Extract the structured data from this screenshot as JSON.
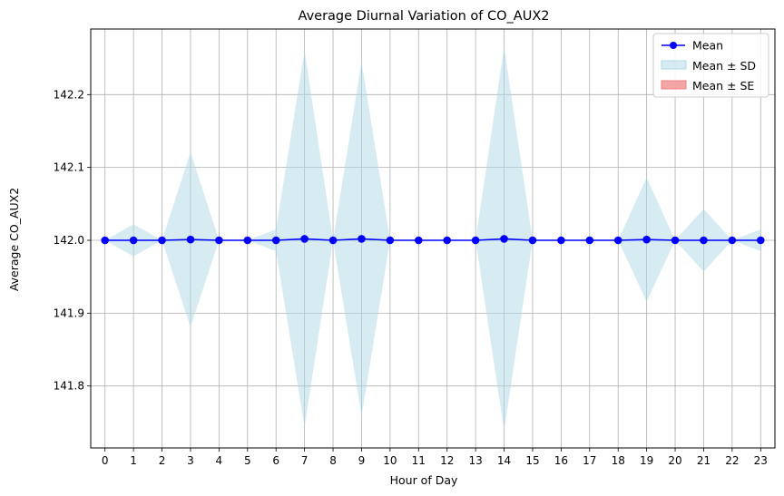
{
  "chart_data": {
    "type": "line",
    "title": "Average Diurnal Variation of CO_AUX2",
    "xlabel": "Hour of Day",
    "ylabel": "Average CO_AUX2",
    "x": [
      0,
      1,
      2,
      3,
      4,
      5,
      6,
      7,
      8,
      9,
      10,
      11,
      12,
      13,
      14,
      15,
      16,
      17,
      18,
      19,
      20,
      21,
      22,
      23
    ],
    "xlim": [
      -0.5,
      23.5
    ],
    "ylim": [
      141.715,
      142.29
    ],
    "yticks": [
      141.8,
      141.9,
      142.0,
      142.1,
      142.2
    ],
    "ytick_labels": [
      "141.8",
      "141.9",
      "142.0",
      "142.1",
      "142.2"
    ],
    "xtick_labels": [
      "0",
      "1",
      "2",
      "3",
      "4",
      "5",
      "6",
      "7",
      "8",
      "9",
      "10",
      "11",
      "12",
      "13",
      "14",
      "15",
      "16",
      "17",
      "18",
      "19",
      "20",
      "21",
      "22",
      "23"
    ],
    "grid": true,
    "legend_position": "top-right",
    "series": [
      {
        "name": "Mean",
        "kind": "line-markers",
        "color": "#0000ff",
        "values": [
          142.0,
          142.0,
          142.0,
          142.001,
          142.0,
          142.0,
          142.0,
          142.002,
          142.0,
          142.002,
          142.0,
          142.0,
          142.0,
          142.0,
          142.002,
          142.0,
          142.0,
          142.0,
          142.0,
          142.001,
          142.0,
          142.0,
          142.0,
          142.0
        ]
      },
      {
        "name": "Mean ± SD",
        "kind": "band",
        "color": "#add8e6",
        "upper": [
          142.0,
          142.022,
          142.0,
          142.121,
          142.0,
          142.0,
          142.015,
          142.26,
          142.0,
          142.245,
          142.0,
          142.0,
          142.0,
          142.0,
          142.265,
          142.0,
          142.0,
          142.0,
          142.0,
          142.086,
          142.0,
          142.043,
          142.0,
          142.015
        ],
        "lower": [
          142.0,
          141.978,
          142.0,
          141.881,
          142.0,
          142.0,
          141.985,
          141.744,
          142.0,
          141.759,
          142.0,
          142.0,
          142.0,
          142.0,
          141.739,
          142.0,
          142.0,
          142.0,
          142.0,
          141.916,
          142.0,
          141.957,
          142.0,
          141.985
        ]
      },
      {
        "name": "Mean ± SE",
        "kind": "band",
        "color": "#f08080",
        "upper": [
          142.0,
          142.0,
          142.0,
          142.001,
          142.0,
          142.0,
          142.0,
          142.003,
          142.0,
          142.003,
          142.0,
          142.0,
          142.0,
          142.0,
          142.003,
          142.0,
          142.0,
          142.0,
          142.0,
          142.001,
          142.0,
          142.0,
          142.0,
          142.0
        ],
        "lower": [
          142.0,
          142.0,
          142.0,
          142.001,
          142.0,
          142.0,
          142.0,
          142.001,
          142.0,
          142.001,
          142.0,
          142.0,
          142.0,
          142.0,
          142.001,
          142.0,
          142.0,
          142.0,
          142.0,
          142.001,
          142.0,
          142.0,
          142.0,
          142.0
        ]
      }
    ]
  }
}
